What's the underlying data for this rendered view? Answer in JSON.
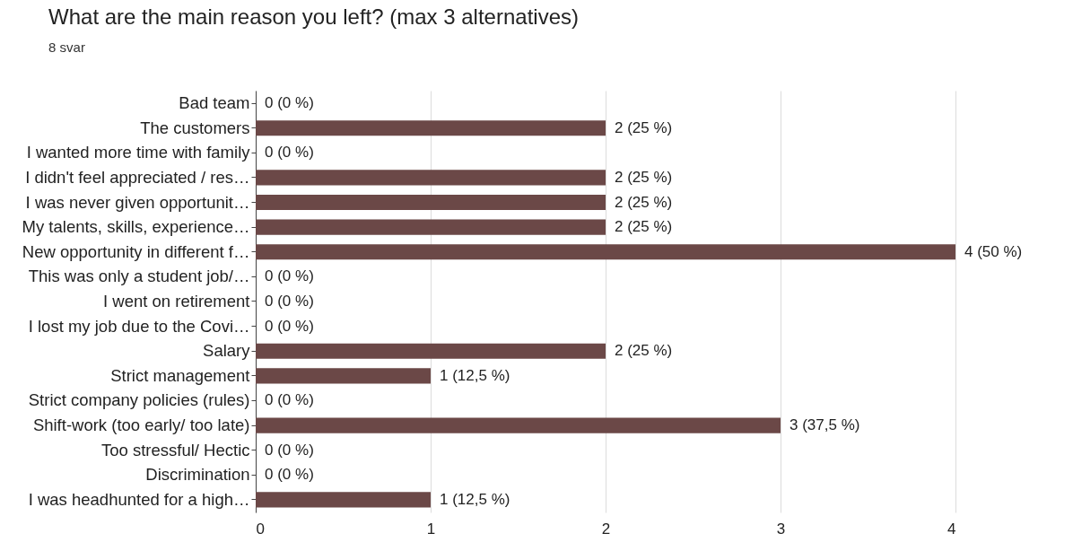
{
  "chart_data": {
    "type": "bar",
    "orientation": "horizontal",
    "title": "What are the main reason you left? (max 3 alternatives)",
    "subtitle": "8 svar",
    "categories": [
      "Bad team",
      "The customers",
      "I wanted more time with family",
      "I didn't feel appreciated / res…",
      "I was never given opportunit…",
      "My talents, skills, experience…",
      "New opportunity in different f…",
      "This was only a student job/…",
      "I went on retirement",
      "I lost my job due to the Covi…",
      "Salary",
      "Strict management",
      "Strict company policies (rules)",
      "Shift-work (too early/ too late)",
      "Too stressful/ Hectic",
      "Discrimination",
      "I was headhunted for a high…"
    ],
    "values": [
      0,
      2,
      0,
      2,
      2,
      2,
      4,
      0,
      0,
      0,
      2,
      1,
      0,
      3,
      0,
      0,
      1
    ],
    "value_labels": [
      "0 (0 %)",
      "2 (25 %)",
      "0 (0 %)",
      "2 (25 %)",
      "2 (25 %)",
      "2 (25 %)",
      "4 (50 %)",
      "0 (0 %)",
      "0 (0 %)",
      "0 (0 %)",
      "2 (25 %)",
      "1 (12,5 %)",
      "0 (0 %)",
      "3 (37,5 %)",
      "0 (0 %)",
      "0 (0 %)",
      "1 (12,5 %)"
    ],
    "color": "#6b4847",
    "xlim": [
      0,
      4
    ],
    "xticks": [
      0,
      1,
      2,
      3,
      4
    ],
    "grid": "x"
  }
}
